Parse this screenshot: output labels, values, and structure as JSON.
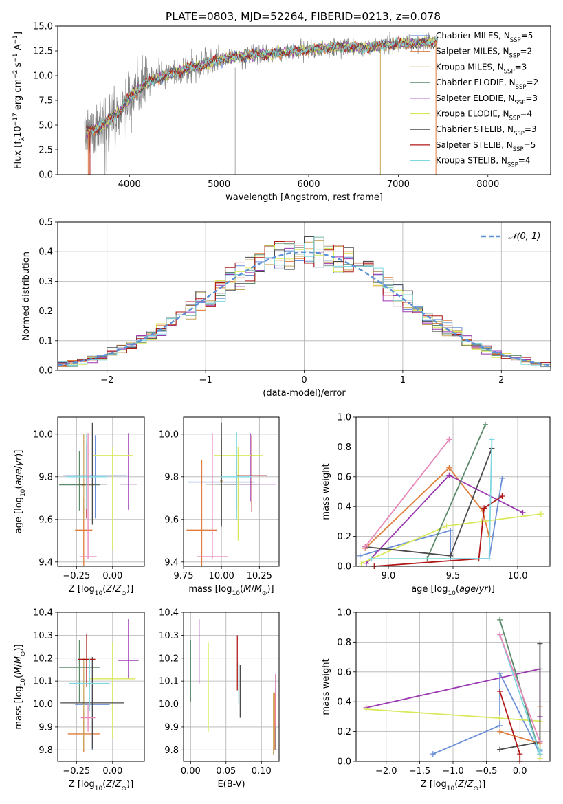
{
  "figure": {
    "title": "PLATE=0803, MJD=52264, FIBERID=0213, z=0.078"
  },
  "colors": {
    "chabrier_miles": "#6b8fd6",
    "salpeter_miles": "#e07b39",
    "kroupa_miles": "#c9a45a",
    "chabrier_elodie": "#5b8a6a",
    "salpeter_elodie": "#9b38b0",
    "kroupa_elodie": "#d9e85a",
    "chabrier_stelib": "#4a4a4a",
    "salpeter_stelib": "#b01818",
    "kroupa_stelib": "#7fd8e0",
    "data": "#808080",
    "pink": "#e887b8"
  },
  "chart_data": [
    {
      "id": "spectrum",
      "type": "line",
      "xlabel": "wavelength [Angstrom, rest frame]",
      "ylabel": "Flux [f_λ 10^-17 erg cm^-2 s^-1 A^-1]",
      "xlim": [
        3200,
        8700
      ],
      "ylim": [
        0,
        15
      ],
      "xticks": [
        4000,
        5000,
        6000,
        7000,
        8000
      ],
      "yticks": [
        0.0,
        2.5,
        5.0,
        7.5,
        10.0,
        12.5,
        15.0
      ],
      "grid": false,
      "legend_position": "right",
      "legend": [
        {
          "name": "Chabrier MILES, N",
          "sub": "SSP",
          "suffix": "=5",
          "color_key": "chabrier_miles"
        },
        {
          "name": "Salpeter MILES, N",
          "sub": "SSP",
          "suffix": "=2",
          "color_key": "salpeter_miles"
        },
        {
          "name": "Kroupa MILES, N",
          "sub": "SSP",
          "suffix": "=3",
          "color_key": "kroupa_miles"
        },
        {
          "name": "Chabrier ELODIE, N",
          "sub": "SSP",
          "suffix": "=2",
          "color_key": "chabrier_elodie"
        },
        {
          "name": "Salpeter ELODIE, N",
          "sub": "SSP",
          "suffix": "=3",
          "color_key": "salpeter_elodie"
        },
        {
          "name": "Kroupa ELODIE, N",
          "sub": "SSP",
          "suffix": "=4",
          "color_key": "kroupa_elodie"
        },
        {
          "name": "Chabrier STELIB, N",
          "sub": "SSP",
          "suffix": "=3",
          "color_key": "chabrier_stelib"
        },
        {
          "name": "Salpeter STELIB, N",
          "sub": "SSP",
          "suffix": "=5",
          "color_key": "salpeter_stelib"
        },
        {
          "name": "Kroupa STELIB, N",
          "sub": "SSP",
          "suffix": "=4",
          "color_key": "kroupa_stelib"
        }
      ],
      "data_trend": {
        "x": [
          3500,
          3700,
          3900,
          4000,
          4100,
          4200,
          4400,
          4600,
          4800,
          5000,
          5200,
          5400,
          5600,
          5800,
          6000,
          6200,
          6400,
          6600,
          6800,
          7000,
          7200,
          7400
        ],
        "y": [
          4.2,
          5.0,
          6.5,
          7.8,
          8.6,
          9.3,
          10.0,
          10.6,
          11.0,
          11.6,
          11.9,
          12.1,
          12.2,
          12.4,
          12.6,
          12.8,
          12.9,
          12.8,
          13.0,
          13.2,
          13.3,
          13.4
        ]
      },
      "model_drops": [
        3540,
        3560,
        6800,
        7420
      ]
    },
    {
      "id": "residuals",
      "type": "histogram",
      "xlabel": "(data-model)/error",
      "ylabel": "Normed distribution",
      "xlim": [
        -2.5,
        2.5
      ],
      "ylim": [
        0,
        0.5
      ],
      "xticks": [
        -2,
        -1,
        0,
        1,
        2
      ],
      "yticks": [
        0.0,
        0.1,
        0.2,
        0.3,
        0.4,
        0.5
      ],
      "grid": true,
      "legend_position": "top-right",
      "legend_label": "𝒩(0, 1)",
      "bin_width": 0.1
    },
    {
      "id": "age_vs_z",
      "type": "scatter",
      "xlabel": "Z [log10(Z/Z⊙)]",
      "ylabel": "age  [log10(age/yr)]",
      "xlim": [
        -0.38,
        0.22
      ],
      "ylim": [
        9.38,
        10.08
      ],
      "xticks": [
        -0.25,
        0.0
      ],
      "xticklabels": [
        "−0.25",
        "0.00"
      ],
      "yticks": [
        9.4,
        9.6,
        9.8,
        10.0
      ],
      "grid": true,
      "points": [
        {
          "x": -0.12,
          "y": 9.805,
          "xerr": 0.22,
          "yerr_lo": 0.2,
          "yerr_hi": 0.19,
          "c": "chabrier_miles"
        },
        {
          "x": -0.2,
          "y": 9.55,
          "xerr": 0.06,
          "yerr_lo": 0.17,
          "yerr_hi": 0.15,
          "c": "salpeter_miles"
        },
        {
          "x": -0.2,
          "y": 9.76,
          "xerr": 0.01,
          "yerr_lo": 0.16,
          "yerr_hi": 0.24,
          "c": "kroupa_miles"
        },
        {
          "x": -0.23,
          "y": 9.762,
          "xerr": 0.14,
          "yerr_lo": 0.12,
          "yerr_hi": 0.16,
          "c": "chabrier_elodie"
        },
        {
          "x": 0.11,
          "y": 9.765,
          "xerr": 0.06,
          "yerr_lo": 0.12,
          "yerr_hi": 0.24,
          "c": "salpeter_elodie"
        },
        {
          "x": 0.0,
          "y": 9.9,
          "xerr": 0.14,
          "yerr_lo": 0.44,
          "yerr_hi": 0.04,
          "c": "kroupa_elodie"
        },
        {
          "x": -0.14,
          "y": 9.765,
          "xerr": 0.1,
          "yerr_lo": 0.19,
          "yerr_hi": 0.29,
          "c": "chabrier_stelib"
        },
        {
          "x": -0.18,
          "y": 9.765,
          "xerr": 0.06,
          "yerr_lo": 0.16,
          "yerr_hi": 0.19,
          "c": "salpeter_stelib"
        },
        {
          "x": -0.18,
          "y": 9.8,
          "xerr": 0.14,
          "yerr_lo": 0.15,
          "yerr_hi": 0.2,
          "c": "kroupa_stelib"
        },
        {
          "x": -0.17,
          "y": 9.425,
          "xerr": 0.06,
          "yerr_lo": 0.01,
          "yerr_hi": 0.58,
          "c": "pink"
        }
      ]
    },
    {
      "id": "age_vs_mass",
      "type": "scatter",
      "xlabel": "mass [log10(M/M⊙)]",
      "ylabel": "",
      "xlim": [
        9.75,
        10.38
      ],
      "ylim": [
        9.38,
        10.08
      ],
      "xticks": [
        9.75,
        10.0,
        10.25
      ],
      "yticks": [
        9.4,
        9.6,
        9.8,
        10.0
      ],
      "grid": true,
      "points": [
        {
          "x": 10.0,
          "y": 9.775,
          "xerr": 0.22,
          "yerr_lo": 0.2,
          "yerr_hi": 0.2,
          "c": "chabrier_miles"
        },
        {
          "x": 9.87,
          "y": 9.55,
          "xerr": 0.1,
          "yerr_lo": 0.17,
          "yerr_hi": 0.33,
          "c": "salpeter_miles"
        },
        {
          "x": 10.0,
          "y": 9.78,
          "xerr": 0.01,
          "yerr_lo": 0.2,
          "yerr_hi": 0.2,
          "c": "kroupa_miles"
        },
        {
          "x": 10.1,
          "y": 9.765,
          "xerr": 0.14,
          "yerr_lo": 0.12,
          "yerr_hi": 0.12,
          "c": "chabrier_elodie"
        },
        {
          "x": 10.19,
          "y": 9.765,
          "xerr": 0.17,
          "yerr_lo": 0.08,
          "yerr_hi": 0.24,
          "c": "salpeter_elodie"
        },
        {
          "x": 10.11,
          "y": 9.9,
          "xerr": 0.16,
          "yerr_lo": 0.4,
          "yerr_hi": 0.04,
          "c": "kroupa_elodie"
        },
        {
          "x": 10.0,
          "y": 9.765,
          "xerr": 0.1,
          "yerr_lo": 0.2,
          "yerr_hi": 0.29,
          "c": "chabrier_stelib"
        },
        {
          "x": 10.2,
          "y": 9.805,
          "xerr": 0.1,
          "yerr_lo": 0.17,
          "yerr_hi": 0.19,
          "c": "salpeter_stelib"
        },
        {
          "x": 10.1,
          "y": 9.8,
          "xerr": 0.1,
          "yerr_lo": 0.2,
          "yerr_hi": 0.21,
          "c": "kroupa_stelib"
        },
        {
          "x": 9.94,
          "y": 9.425,
          "xerr": 0.1,
          "yerr_lo": 0.01,
          "yerr_hi": 0.58,
          "c": "pink"
        }
      ]
    },
    {
      "id": "weight_vs_age",
      "type": "line",
      "xlabel": "age  [log10(age/yr)]",
      "ylabel": "mass weight",
      "xlim": [
        8.75,
        10.25
      ],
      "ylim": [
        0,
        1
      ],
      "xticks": [
        9.0,
        9.5,
        10.0
      ],
      "yticks": [
        0.0,
        0.2,
        0.4,
        0.6,
        0.8,
        1.0
      ],
      "grid": true,
      "series": [
        {
          "c": "chabrier_miles",
          "x": [
            8.78,
            9.48,
            9.48,
            9.78,
            9.88
          ],
          "y": [
            0.07,
            0.24,
            0.05,
            0.05,
            0.59
          ]
        },
        {
          "c": "salpeter_miles",
          "x": [
            8.82,
            9.47,
            9.73,
            9.78
          ],
          "y": [
            0.12,
            0.66,
            0.37,
            0.2
          ]
        },
        {
          "c": "salpeter_elodie",
          "x": [
            8.83,
            9.47,
            10.04
          ],
          "y": [
            0.02,
            0.61,
            0.36
          ]
        },
        {
          "c": "kroupa_elodie",
          "x": [
            8.79,
            9.45,
            9.72,
            10.18
          ],
          "y": [
            0.02,
            0.27,
            0.3,
            0.35
          ]
        },
        {
          "c": "chabrier_elodie",
          "x": [
            9.3,
            9.75
          ],
          "y": [
            0.05,
            0.95
          ]
        },
        {
          "c": "chabrier_stelib",
          "x": [
            8.82,
            9.48,
            9.8
          ],
          "y": [
            0.13,
            0.07,
            0.79
          ]
        },
        {
          "c": "salpeter_stelib",
          "x": [
            8.89,
            9.7,
            9.74,
            9.88
          ],
          "y": [
            0.0,
            0.05,
            0.39,
            0.47
          ]
        },
        {
          "c": "kroupa_stelib",
          "x": [
            8.87,
            9.78,
            9.8
          ],
          "y": [
            0.05,
            0.05,
            0.85
          ]
        },
        {
          "c": "pink",
          "x": [
            8.82,
            9.47
          ],
          "y": [
            0.13,
            0.85
          ]
        }
      ]
    },
    {
      "id": "mass_vs_z",
      "type": "scatter",
      "xlabel": "Z [log10(Z/Z⊙)]",
      "ylabel": "mass [log10(M/M⊙)]",
      "xlim": [
        -0.38,
        0.22
      ],
      "ylim": [
        9.75,
        10.4
      ],
      "xticks": [
        -0.25,
        0.0
      ],
      "xticklabels": [
        "−0.25",
        "0.00"
      ],
      "yticks": [
        9.8,
        9.9,
        10.0,
        10.1,
        10.2,
        10.3,
        10.4
      ],
      "grid": true,
      "points": [
        {
          "x": -0.14,
          "y": 9.998,
          "xerr": 0.12,
          "yerr_lo": 0.2,
          "yerr_hi": 0.2,
          "c": "chabrier_miles"
        },
        {
          "x": -0.2,
          "y": 9.87,
          "xerr": 0.11,
          "yerr_lo": 0.08,
          "yerr_hi": 0.1,
          "c": "salpeter_miles"
        },
        {
          "x": -0.2,
          "y": 10.0,
          "xerr": 0.01,
          "yerr_lo": 0.2,
          "yerr_hi": 0.2,
          "c": "kroupa_miles"
        },
        {
          "x": -0.23,
          "y": 10.16,
          "xerr": 0.14,
          "yerr_lo": 0.15,
          "yerr_hi": 0.12,
          "c": "chabrier_elodie"
        },
        {
          "x": 0.11,
          "y": 10.19,
          "xerr": 0.07,
          "yerr_lo": 0.08,
          "yerr_hi": 0.18,
          "c": "salpeter_elodie"
        },
        {
          "x": 0.0,
          "y": 10.11,
          "xerr": 0.16,
          "yerr_lo": 0.26,
          "yerr_hi": 0.16,
          "c": "kroupa_elodie"
        },
        {
          "x": -0.14,
          "y": 10.005,
          "xerr": 0.22,
          "yerr_lo": 0.2,
          "yerr_hi": 0.2,
          "c": "chabrier_stelib"
        },
        {
          "x": -0.18,
          "y": 10.195,
          "xerr": 0.06,
          "yerr_lo": 0.12,
          "yerr_hi": 0.11,
          "c": "salpeter_stelib"
        },
        {
          "x": -0.16,
          "y": 10.09,
          "xerr": 0.14,
          "yerr_lo": 0.12,
          "yerr_hi": 0.11,
          "c": "kroupa_stelib"
        },
        {
          "x": -0.17,
          "y": 9.94,
          "xerr": 0.05,
          "yerr_lo": 0.06,
          "yerr_hi": 0.06,
          "c": "pink"
        }
      ]
    },
    {
      "id": "mass_vs_ebv",
      "type": "scatter",
      "xlabel": "E(B-V)",
      "ylabel": "",
      "xlim": [
        -0.01,
        0.125
      ],
      "ylim": [
        9.75,
        10.4
      ],
      "xticks": [
        0.0,
        0.05,
        0.1
      ],
      "xticklabels": [
        "0.00",
        "0.05",
        "0.10"
      ],
      "yticks": [
        9.8,
        9.9,
        10.0,
        10.1,
        10.2,
        10.3,
        10.4
      ],
      "grid": true,
      "points": [
        {
          "x": 0.12,
          "y": 10.0,
          "xerr": 0,
          "yerr_lo": 0.2,
          "yerr_hi": 0.13,
          "c": "chabrier_miles"
        },
        {
          "x": 0.119,
          "y": 9.95,
          "xerr": 0,
          "yerr_lo": 0.15,
          "yerr_hi": 0.1,
          "c": "salpeter_miles"
        },
        {
          "x": 0.117,
          "y": 9.9,
          "xerr": 0,
          "yerr_lo": 0.12,
          "yerr_hi": 0.15,
          "c": "kroupa_miles"
        },
        {
          "x": 0.0,
          "y": 10.16,
          "xerr": 0,
          "yerr_lo": 0.15,
          "yerr_hi": 0.12,
          "c": "chabrier_elodie"
        },
        {
          "x": 0.012,
          "y": 10.19,
          "xerr": 0,
          "yerr_lo": 0.1,
          "yerr_hi": 0.18,
          "c": "salpeter_elodie"
        },
        {
          "x": 0.025,
          "y": 10.08,
          "xerr": 0,
          "yerr_lo": 0.2,
          "yerr_hi": 0.19,
          "c": "kroupa_elodie"
        },
        {
          "x": 0.07,
          "y": 10.08,
          "xerr": 0,
          "yerr_lo": 0.14,
          "yerr_hi": 0.09,
          "c": "chabrier_stelib"
        },
        {
          "x": 0.066,
          "y": 10.17,
          "xerr": 0,
          "yerr_lo": 0.11,
          "yerr_hi": 0.13,
          "c": "salpeter_stelib"
        },
        {
          "x": 0.068,
          "y": 10.08,
          "xerr": 0,
          "yerr_lo": 0.08,
          "yerr_hi": 0.1,
          "c": "kroupa_stelib"
        },
        {
          "x": 0.12,
          "y": 10.03,
          "xerr": 0,
          "yerr_lo": 0.13,
          "yerr_hi": 0.1,
          "c": "pink"
        }
      ]
    },
    {
      "id": "weight_vs_z",
      "type": "line",
      "xlabel": "Z [log10(Z/Z⊙)]",
      "ylabel": "mass weight",
      "xlim": [
        -2.45,
        0.45
      ],
      "ylim": [
        0,
        1
      ],
      "xticks": [
        -2.0,
        -1.5,
        -1.0,
        -0.5,
        0.0
      ],
      "xticklabels": [
        "−2.0",
        "−1.5",
        "−1.0",
        "−0.5",
        "0.0"
      ],
      "yticks": [
        0.0,
        0.2,
        0.4,
        0.6,
        0.8,
        1.0
      ],
      "grid": true,
      "series": [
        {
          "c": "chabrier_miles",
          "x": [
            -1.3,
            -0.3,
            -0.3,
            0.3,
            0.3
          ],
          "y": [
            0.05,
            0.24,
            0.59,
            0.05,
            0.07
          ]
        },
        {
          "c": "salpeter_miles",
          "x": [
            -0.3,
            0.3,
            0.3
          ],
          "y": [
            0.2,
            0.12,
            0.37
          ]
        },
        {
          "c": "salpeter_elodie",
          "x": [
            -2.3,
            0.3,
            0.3,
            0.3
          ],
          "y": [
            0.36,
            0.62,
            0.02,
            0.3
          ]
        },
        {
          "c": "kroupa_elodie",
          "x": [
            -2.3,
            -0.3,
            0.3,
            0.3
          ],
          "y": [
            0.35,
            0.29,
            0.27,
            0.02
          ]
        },
        {
          "c": "chabrier_elodie",
          "x": [
            -0.3,
            0.3
          ],
          "y": [
            0.95,
            0.05
          ]
        },
        {
          "c": "chabrier_stelib",
          "x": [
            -0.3,
            0.3,
            0.3
          ],
          "y": [
            0.08,
            0.13,
            0.79
          ]
        },
        {
          "c": "salpeter_stelib",
          "x": [
            -0.3,
            0.0,
            0.0
          ],
          "y": [
            0.47,
            0.05,
            0.0
          ]
        },
        {
          "c": "kroupa_stelib",
          "x": [
            -0.3,
            0.3,
            0.3
          ],
          "y": [
            0.85,
            0.05,
            0.08
          ]
        },
        {
          "c": "pink",
          "x": [
            -0.3,
            0.3
          ],
          "y": [
            0.85,
            0.13
          ]
        }
      ]
    }
  ]
}
